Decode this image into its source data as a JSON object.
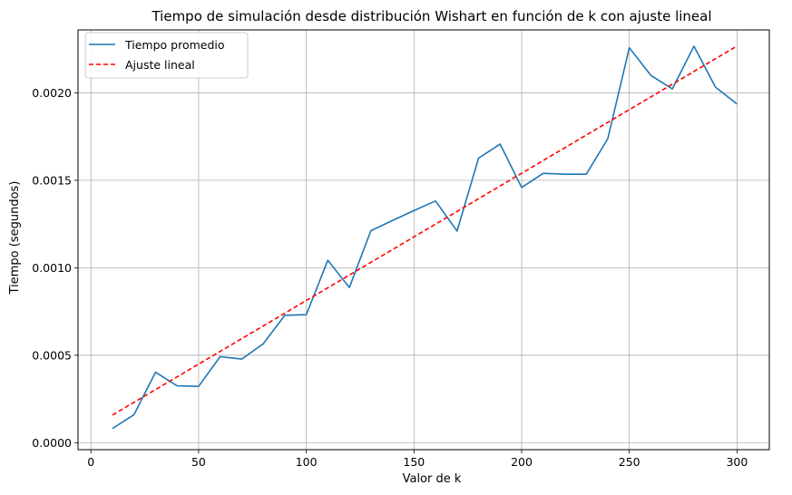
{
  "chart_data": {
    "type": "line",
    "title": "Tiempo de simulación desde distribución Wishart en función de k con ajuste lineal",
    "xlabel": "Valor de k",
    "ylabel": "Tiempo (segundos)",
    "xlim": [
      -6,
      315
    ],
    "ylim": [
      -4e-05,
      0.00236
    ],
    "xticks": [
      0,
      50,
      100,
      150,
      200,
      250,
      300
    ],
    "xtick_labels": [
      "0",
      "50",
      "100",
      "150",
      "200",
      "250",
      "300"
    ],
    "yticks": [
      0.0,
      0.0005,
      0.001,
      0.0015,
      0.002
    ],
    "ytick_labels": [
      "0.0000",
      "0.0005",
      "0.0010",
      "0.0015",
      "0.0020"
    ],
    "grid": true,
    "legend_position": "top-left",
    "series": [
      {
        "name": "Tiempo promedio",
        "color": "#1f77b4",
        "style": "solid",
        "x": [
          10,
          20,
          30,
          40,
          50,
          60,
          70,
          80,
          90,
          100,
          110,
          120,
          130,
          140,
          150,
          160,
          170,
          180,
          190,
          200,
          210,
          220,
          230,
          240,
          250,
          260,
          270,
          280,
          290,
          300
        ],
        "y": [
          8.1e-05,
          0.00016,
          0.000403,
          0.000325,
          0.000322,
          0.000492,
          0.000478,
          0.000565,
          0.000728,
          0.000732,
          0.001043,
          0.000887,
          0.001212,
          0.00127,
          0.001327,
          0.001382,
          0.00121,
          0.001627,
          0.001707,
          0.001459,
          0.00154,
          0.001535,
          0.001535,
          0.001738,
          0.002258,
          0.0021,
          0.002023,
          0.002267,
          0.002033,
          0.001936
        ]
      },
      {
        "name": "Ajuste lineal",
        "color": "#ff0000",
        "style": "dashed",
        "x": [
          10,
          300
        ],
        "y": [
          0.000158,
          0.002268
        ]
      }
    ]
  }
}
